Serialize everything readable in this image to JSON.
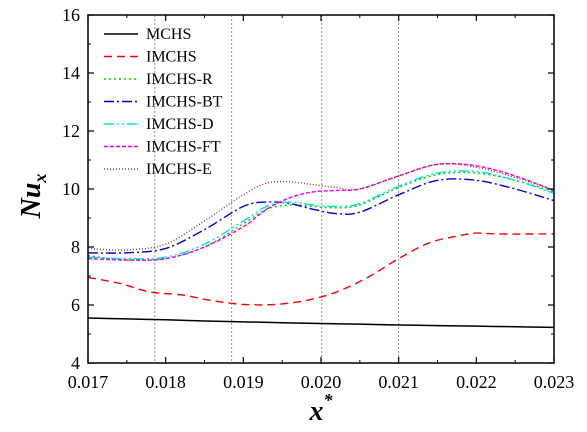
{
  "chart_data": {
    "type": "line",
    "xlabel": "x",
    "xlabel_sup": "*",
    "ylabel": "Nu",
    "ylabel_sub": "x",
    "xlim": [
      0.017,
      0.023
    ],
    "ylim": [
      4,
      16
    ],
    "xticks": [
      "0.017",
      "0.018",
      "0.019",
      "0.020",
      "0.021",
      "0.022",
      "0.023"
    ],
    "yticks": [
      "4",
      "6",
      "8",
      "10",
      "12",
      "14",
      "16"
    ],
    "vlines": [
      0.01786,
      0.01885,
      0.02001,
      0.021
    ],
    "legend_position": "top-left",
    "series": [
      {
        "name": "MCHS",
        "color": "#000000",
        "dash": "solid",
        "x": [
          0.017,
          0.0175,
          0.018,
          0.0185,
          0.019,
          0.0195,
          0.02,
          0.0205,
          0.021,
          0.0215,
          0.022,
          0.0225,
          0.023
        ],
        "y": [
          5.55,
          5.52,
          5.49,
          5.45,
          5.42,
          5.39,
          5.36,
          5.34,
          5.31,
          5.29,
          5.27,
          5.25,
          5.23
        ]
      },
      {
        "name": "IMCHS",
        "color": "#ff0000",
        "dash": "dashed",
        "x": [
          0.017,
          0.0174,
          0.0178,
          0.0182,
          0.0186,
          0.019,
          0.0194,
          0.0198,
          0.0202,
          0.0206,
          0.021,
          0.0214,
          0.0218,
          0.022,
          0.0223,
          0.023
        ],
        "y": [
          6.95,
          6.75,
          6.45,
          6.35,
          6.15,
          6.02,
          6.02,
          6.15,
          6.45,
          6.95,
          7.6,
          8.15,
          8.4,
          8.48,
          8.45,
          8.45
        ]
      },
      {
        "name": "IMCHS-R",
        "color": "#00cc00",
        "dash": "dotted",
        "x": [
          0.017,
          0.0175,
          0.018,
          0.0185,
          0.019,
          0.0193,
          0.0196,
          0.0199,
          0.0202,
          0.0205,
          0.021,
          0.0215,
          0.022,
          0.0225,
          0.023
        ],
        "y": [
          7.7,
          7.55,
          7.6,
          8.0,
          8.8,
          9.3,
          9.45,
          9.4,
          9.35,
          9.45,
          10.05,
          10.5,
          10.55,
          10.3,
          9.9
        ]
      },
      {
        "name": "IMCHS-BT",
        "color": "#0000cc",
        "dash": "dashdot",
        "x": [
          0.017,
          0.0175,
          0.018,
          0.0185,
          0.019,
          0.0193,
          0.0196,
          0.0199,
          0.0202,
          0.0205,
          0.021,
          0.0215,
          0.022,
          0.0225,
          0.023
        ],
        "y": [
          7.8,
          7.8,
          7.95,
          8.6,
          9.4,
          9.55,
          9.5,
          9.3,
          9.15,
          9.2,
          9.8,
          10.3,
          10.3,
          10.0,
          9.6
        ]
      },
      {
        "name": "IMCHS-D",
        "color": "#00e0e0",
        "dash": "dashdotdot",
        "x": [
          0.017,
          0.0175,
          0.018,
          0.0185,
          0.019,
          0.0193,
          0.0196,
          0.0199,
          0.0202,
          0.0205,
          0.021,
          0.0215,
          0.022,
          0.0225,
          0.023
        ],
        "y": [
          7.65,
          7.6,
          7.65,
          8.1,
          8.9,
          9.4,
          9.55,
          9.45,
          9.4,
          9.5,
          10.1,
          10.55,
          10.6,
          10.3,
          9.85
        ]
      },
      {
        "name": "IMCHS-FT",
        "color": "#ee00ee",
        "dash": "shortdash",
        "x": [
          0.017,
          0.0175,
          0.018,
          0.0185,
          0.019,
          0.0193,
          0.0196,
          0.0199,
          0.0202,
          0.0205,
          0.021,
          0.0215,
          0.022,
          0.0225,
          0.023
        ],
        "y": [
          7.6,
          7.55,
          7.6,
          8.0,
          8.7,
          9.3,
          9.7,
          9.9,
          9.95,
          10.0,
          10.45,
          10.85,
          10.8,
          10.45,
          9.95
        ]
      },
      {
        "name": "IMCHS-E",
        "color": "#8b3a3a",
        "dash": "finedot",
        "x": [
          0.017,
          0.0175,
          0.018,
          0.0185,
          0.019,
          0.0193,
          0.0196,
          0.0199,
          0.0202,
          0.0205,
          0.021,
          0.0215,
          0.022,
          0.0225,
          0.023
        ],
        "y": [
          7.95,
          7.9,
          8.1,
          8.9,
          9.8,
          10.2,
          10.25,
          10.15,
          10.05,
          10.0,
          10.45,
          10.85,
          10.75,
          10.4,
          9.95
        ]
      }
    ]
  }
}
